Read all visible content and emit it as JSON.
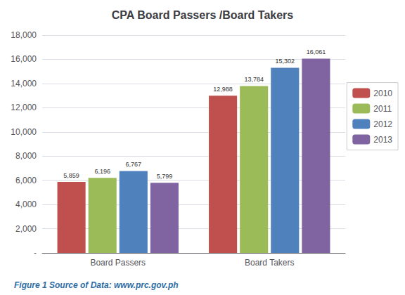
{
  "chart_data": {
    "type": "bar",
    "title": "CPA Board Passers /Board Takers",
    "categories": [
      "Board Passers",
      "Board Takers"
    ],
    "series": [
      {
        "name": "2010",
        "color": "#c0504d",
        "values": [
          5859,
          12988
        ],
        "value_labels": [
          "5,859",
          "12,988"
        ]
      },
      {
        "name": "2011",
        "color": "#9bbb59",
        "values": [
          6196,
          13784
        ],
        "value_labels": [
          "6,196",
          "13,784"
        ]
      },
      {
        "name": "2012",
        "color": "#4f81bd",
        "values": [
          6767,
          15302
        ],
        "value_labels": [
          "6,767",
          "15,302"
        ]
      },
      {
        "name": "2013",
        "color": "#8064a2",
        "values": [
          5799,
          16061
        ],
        "value_labels": [
          "5,799",
          "16,061"
        ]
      }
    ],
    "ylim": [
      0,
      18000
    ],
    "yticks": [
      {
        "value": 0,
        "label": "-"
      },
      {
        "value": 2000,
        "label": "2,000"
      },
      {
        "value": 4000,
        "label": "4,000"
      },
      {
        "value": 6000,
        "label": "6,000"
      },
      {
        "value": 8000,
        "label": "8,000"
      },
      {
        "value": 10000,
        "label": "10,000"
      },
      {
        "value": 12000,
        "label": "12,000"
      },
      {
        "value": 14000,
        "label": "14,000"
      },
      {
        "value": 16000,
        "label": "16,000"
      },
      {
        "value": 18000,
        "label": "18,000"
      }
    ],
    "grid": true,
    "legend": "right",
    "data_labels": true,
    "annotations": [
      {
        "text": "Figure 1 Source of Data: www.prc.gov.ph",
        "color": "#2e6da4"
      }
    ]
  }
}
